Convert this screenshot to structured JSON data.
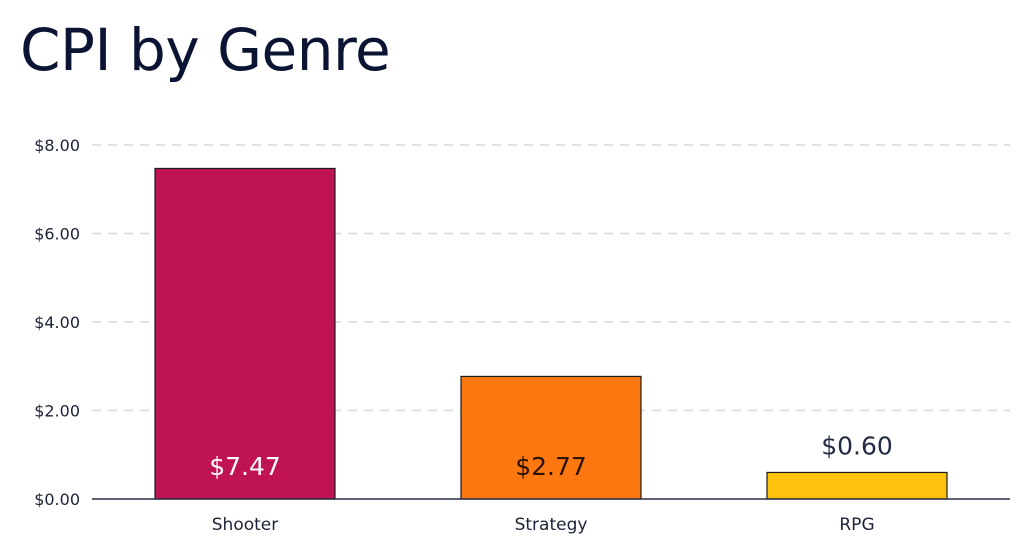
{
  "title": "CPI by Genre",
  "chart_data": {
    "type": "bar",
    "title": "CPI by Genre",
    "xlabel": "",
    "ylabel": "",
    "categories": [
      "Shooter",
      "Strategy",
      "RPG"
    ],
    "values": [
      7.47,
      2.77,
      0.6
    ],
    "data_labels": [
      "$7.47",
      "$2.77",
      "$0.60"
    ],
    "bar_colors": [
      "#c01354",
      "#fe7811",
      "#ffc20c"
    ],
    "label_colors": [
      "#ffffff",
      "#2a1200",
      "#232a44"
    ],
    "ylim": [
      0,
      8
    ],
    "yticks": [
      0,
      2,
      4,
      6,
      8
    ],
    "ytick_labels": [
      "$0.00",
      "$2.00",
      "$4.00",
      "$6.00",
      "$8.00"
    ],
    "grid": true,
    "legend": "none"
  }
}
